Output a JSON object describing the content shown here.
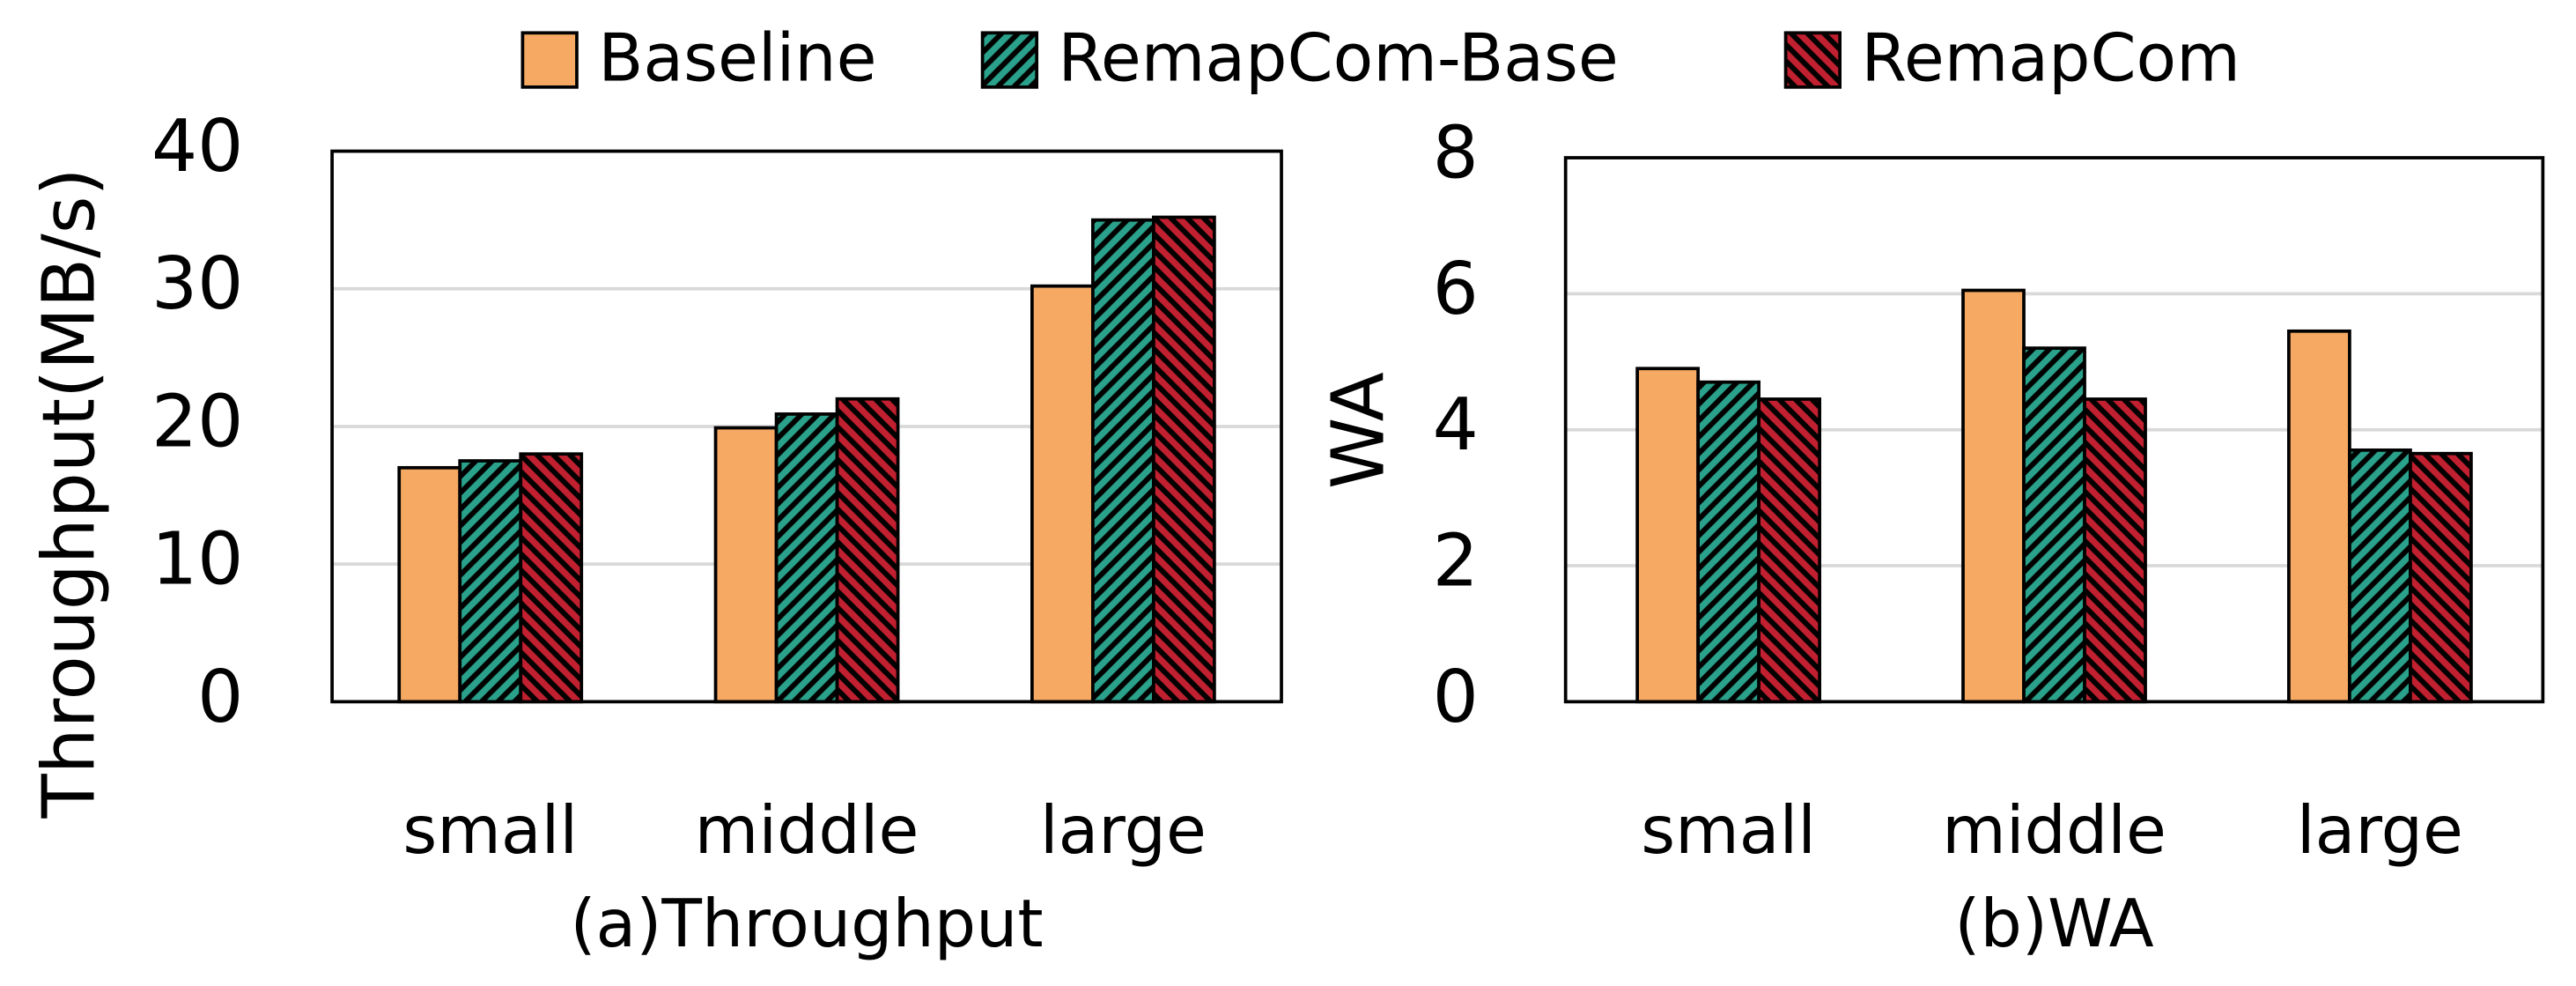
{
  "chart_data": [
    {
      "type": "bar",
      "title": "(a)Throughput",
      "ylabel": "Throughput(MB/s)",
      "categories": [
        "small",
        "middle",
        "large"
      ],
      "series": [
        {
          "name": "Baseline",
          "color": "#f5a962",
          "hatch": "none",
          "values": [
            17,
            19.9,
            30.2
          ]
        },
        {
          "name": "RemapCom-Base",
          "color": "#2aa18a",
          "hatch": "forward",
          "values": [
            17.5,
            20.9,
            35
          ]
        },
        {
          "name": "RemapCom",
          "color": "#c0202f",
          "hatch": "backward",
          "values": [
            18,
            22,
            35.2
          ]
        }
      ],
      "ylim": [
        0,
        40
      ],
      "yticks": [
        0,
        10,
        20,
        30,
        40
      ],
      "grid": true
    },
    {
      "type": "bar",
      "title": "(b)WA",
      "ylabel": "WA",
      "categories": [
        "small",
        "middle",
        "large"
      ],
      "series": [
        {
          "color": "#f5a962",
          "hatch": "none",
          "values": [
            4.9,
            6.05,
            5.45
          ]
        },
        {
          "color": "#2aa18a",
          "hatch": "forward",
          "values": [
            4.7,
            5.2,
            3.7
          ]
        },
        {
          "color": "#c0202f",
          "hatch": "backward",
          "values": [
            4.45,
            4.45,
            3.65
          ]
        }
      ],
      "ylim": [
        0,
        8
      ],
      "yticks": [
        0,
        2,
        4,
        6,
        8
      ],
      "grid": true
    }
  ]
}
